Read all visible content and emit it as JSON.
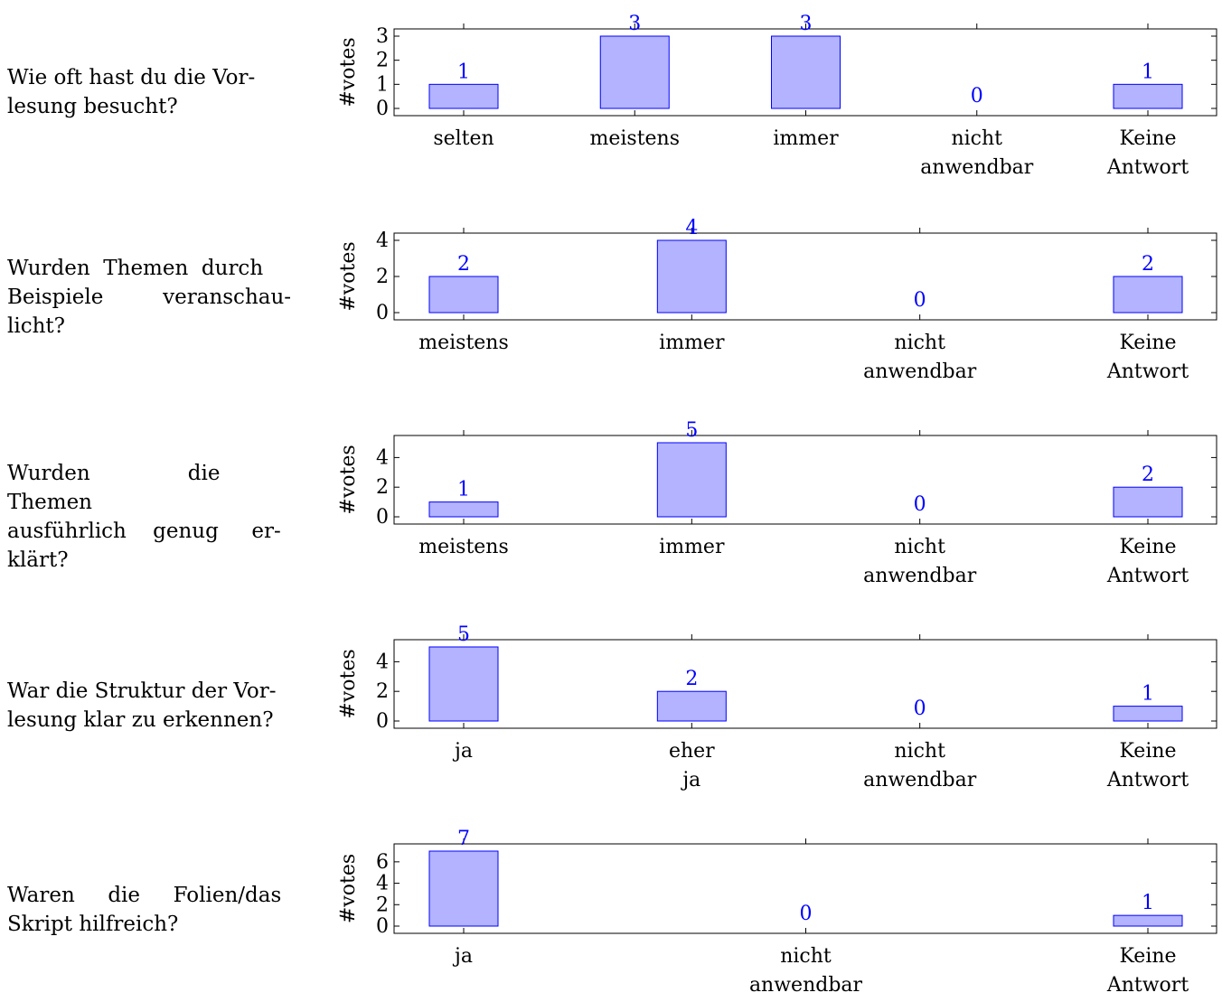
{
  "colors": {
    "bar_fill": "#b3b3ff",
    "bar_stroke": "#0000ff",
    "label": "#0000ff",
    "axis": "#000000"
  },
  "questions": [
    "Wie oft hast du die Vor-lesung besucht?",
    "Wurden Themen durch Beispiele veranschau-licht?",
    "Wurden die Themen ausführlich genug er-klärt?",
    "War die Struktur der Vor-lesung klar zu erkennen?",
    "Waren die Folien/das Skript hilfreich?"
  ],
  "chart_data": [
    {
      "type": "bar",
      "ylabel": "#votes",
      "categories": [
        "selten",
        "meistens",
        "immer",
        "nicht anwendbar",
        "Keine Antwort"
      ],
      "values": [
        1,
        3,
        3,
        0,
        1
      ],
      "yticks": [
        0,
        1,
        2,
        3
      ],
      "ylim": [
        0,
        3
      ],
      "grid": false
    },
    {
      "type": "bar",
      "ylabel": "#votes",
      "categories": [
        "meistens",
        "immer",
        "nicht anwendbar",
        "Keine Antwort"
      ],
      "values": [
        2,
        4,
        0,
        2
      ],
      "yticks": [
        0,
        2,
        4
      ],
      "ylim": [
        0,
        4
      ],
      "grid": false
    },
    {
      "type": "bar",
      "ylabel": "#votes",
      "categories": [
        "meistens",
        "immer",
        "nicht anwendbar",
        "Keine Antwort"
      ],
      "values": [
        1,
        5,
        0,
        2
      ],
      "yticks": [
        0,
        2,
        4
      ],
      "ylim": [
        0,
        5
      ],
      "grid": false
    },
    {
      "type": "bar",
      "ylabel": "#votes",
      "categories": [
        "ja",
        "eher ja",
        "nicht anwendbar",
        "Keine Antwort"
      ],
      "values": [
        5,
        2,
        0,
        1
      ],
      "yticks": [
        0,
        2,
        4
      ],
      "ylim": [
        0,
        5
      ],
      "grid": false
    },
    {
      "type": "bar",
      "ylabel": "#votes",
      "categories": [
        "ja",
        "nicht anwendbar",
        "Keine Antwort"
      ],
      "values": [
        7,
        0,
        1
      ],
      "yticks": [
        0,
        2,
        4,
        6
      ],
      "ylim": [
        0,
        7
      ],
      "grid": false
    }
  ]
}
